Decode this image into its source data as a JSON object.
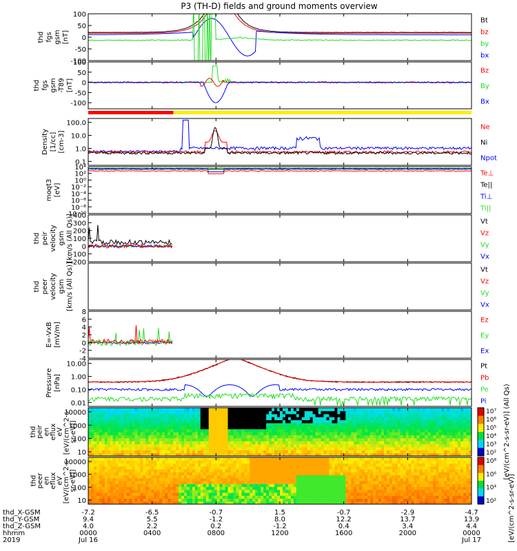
{
  "title": "P3 (TH-D) fields and ground moments overview",
  "colors": {
    "black": "#000000",
    "red": "#ff0000",
    "green": "#22dd22",
    "blue": "#0000ff",
    "yellow": "#ffee00"
  },
  "chart_data": [
    {
      "id": "fgs",
      "type": "line",
      "ylabel": [
        "thd",
        "fgs",
        "gsm",
        "[nT]"
      ],
      "ylim": [
        -100,
        100
      ],
      "ticks": [
        100,
        50,
        0,
        -50,
        -100
      ],
      "legend": [
        {
          "label": "Bt",
          "color": "black"
        },
        {
          "label": "bz",
          "color": "red"
        },
        {
          "label": "by",
          "color": "green"
        },
        {
          "label": "bx",
          "color": "blue"
        }
      ]
    },
    {
      "id": "fgs_minus_t89",
      "type": "line",
      "ylabel": [
        "thd",
        "fgs",
        "gsm",
        "-T89",
        "[nT]"
      ],
      "ylim": [
        -130,
        100
      ],
      "ticks": [
        100,
        50,
        0,
        -50,
        -100
      ],
      "legend": [
        {
          "label": "Bz",
          "color": "red"
        },
        {
          "label": "By",
          "color": "green"
        },
        {
          "label": "Bx",
          "color": "blue"
        }
      ]
    },
    {
      "id": "mode_bar",
      "type": "bar",
      "segments": [
        {
          "from": 0,
          "to": 5.33,
          "color": "red"
        },
        {
          "from": 5.33,
          "to": 24,
          "color": "yellow"
        }
      ]
    },
    {
      "id": "density",
      "type": "line",
      "scale": "log",
      "ylabel": [
        "Density",
        "[1/cc]",
        "[cm-3]"
      ],
      "ylim": [
        0.05,
        200
      ],
      "ticks": [
        "100.0",
        "10.0",
        "1.0",
        "0.1"
      ],
      "legend": [
        {
          "label": "Ne",
          "color": "red"
        },
        {
          "label": "Ni",
          "color": "black"
        },
        {
          "label": "Npot",
          "color": "blue"
        }
      ]
    },
    {
      "id": "temperature",
      "type": "line",
      "scale": "log",
      "ylabel": [
        "moqt3",
        "[eV]"
      ],
      "ylim": [
        1e-10,
        10000
      ],
      "ticks": [
        "10⁴",
        "10²",
        "10⁰",
        "10⁻²",
        "10⁻⁴",
        "10⁻⁶",
        "10⁻⁸",
        "10⁻¹⁰"
      ],
      "legend": [
        {
          "label": "Te⊥",
          "color": "red"
        },
        {
          "label": "Te||",
          "color": "black"
        },
        {
          "label": "Ti⊥",
          "color": "blue"
        },
        {
          "label": "Ti||",
          "color": "green"
        }
      ]
    },
    {
      "id": "peir_velocity",
      "type": "line",
      "ylabel": [
        "thd",
        "peir",
        "velocity",
        "gsm",
        "[km/s (All Qs)]"
      ],
      "ylim": [
        -200,
        400
      ],
      "ticks": [
        400,
        300,
        200,
        100,
        0,
        -100,
        -200
      ],
      "legend": [
        {
          "label": "Vt",
          "color": "black"
        },
        {
          "label": "Vz",
          "color": "red"
        },
        {
          "label": "Vy",
          "color": "green"
        },
        {
          "label": "Vx",
          "color": "blue"
        }
      ]
    },
    {
      "id": "peer_velocity",
      "type": "line",
      "ylabel": [
        "thd",
        "peer",
        "velocity",
        "gsm",
        "[km/s (All Qs)]"
      ],
      "legend": [
        {
          "label": "Vt",
          "color": "black"
        },
        {
          "label": "Vz",
          "color": "red"
        },
        {
          "label": "Vy",
          "color": "green"
        },
        {
          "label": "Vx",
          "color": "blue"
        }
      ]
    },
    {
      "id": "efield",
      "type": "line",
      "ylabel": [
        "E=-VxB",
        "[mV/m]"
      ],
      "ylim": [
        -4,
        8
      ],
      "ticks": [
        8,
        6,
        4,
        2,
        0,
        -2,
        -4
      ],
      "legend": [
        {
          "label": "Ez",
          "color": "red"
        },
        {
          "label": "Ey",
          "color": "green"
        },
        {
          "label": "Ex",
          "color": "blue"
        }
      ]
    },
    {
      "id": "pressure",
      "type": "line",
      "scale": "log",
      "ylabel": [
        "Pressure",
        "[nPa]"
      ],
      "ylim": [
        0.005,
        20
      ],
      "ticks": [
        "10.00",
        "1.00",
        "0.10",
        "0.01"
      ],
      "legend": [
        {
          "label": "Pt",
          "color": "black"
        },
        {
          "label": "Pb",
          "color": "red"
        },
        {
          "label": "Pe",
          "color": "green"
        },
        {
          "label": "Pi",
          "color": "blue"
        }
      ]
    },
    {
      "id": "peir_eflux",
      "type": "heatmap",
      "ylabel": [
        "thd",
        "peir",
        "en",
        "eflux",
        "eV",
        "[eV/(cm^2-s-",
        "sr-eV)]"
      ],
      "ticks": [
        "10000",
        "1000",
        "100",
        "10"
      ],
      "colorbar_ticks": [
        "10⁷",
        "10⁶",
        "10⁵",
        "10⁴",
        "10³",
        "10²"
      ],
      "colorbar_label": "[eV/(cm^2-s-sr-eV)] (All Qs)"
    },
    {
      "id": "peer_eflux",
      "type": "heatmap",
      "ylabel": [
        "thd",
        "peer",
        "en",
        "eflux",
        "eV",
        "[eV/(cm^2-s-",
        "sr-eV)]"
      ],
      "ticks": [
        "10000",
        "1000",
        "100",
        "10"
      ],
      "colorbar_ticks": [
        "10⁸",
        "10⁶",
        "10⁴",
        "10²"
      ],
      "colorbar_label": "[eV/(cm^2-s-sr-eV)]"
    }
  ],
  "x_axis": {
    "row_labels": [
      "thd_X-GSM",
      "thd_Y-GSM",
      "thd_Z-GSM",
      "hhmm",
      "2019"
    ],
    "ticks": [
      {
        "hours": 0,
        "x": "-7.2",
        "y": "9.4",
        "z": "4.0",
        "hhmm": "0000",
        "date": "Jul 16"
      },
      {
        "hours": 4,
        "x": "-6.5",
        "y": "5.5",
        "z": "2.2",
        "hhmm": "0400",
        "date": ""
      },
      {
        "hours": 8,
        "x": "-0.7",
        "y": "-1.2",
        "z": "0.2",
        "hhmm": "0800",
        "date": ""
      },
      {
        "hours": 12,
        "x": "1.5",
        "y": "8.0",
        "z": "-1.2",
        "hhmm": "1200",
        "date": ""
      },
      {
        "hours": 16,
        "x": "-0.7",
        "y": "12.2",
        "z": "0.4",
        "hhmm": "1600",
        "date": ""
      },
      {
        "hours": 20,
        "x": "-2.9",
        "y": "13.7",
        "z": "3.4",
        "hhmm": "2000",
        "date": ""
      },
      {
        "hours": 24,
        "x": "-4.7",
        "y": "13.9",
        "z": "4.4",
        "hhmm": "0000",
        "date": "Jul 17"
      }
    ]
  }
}
